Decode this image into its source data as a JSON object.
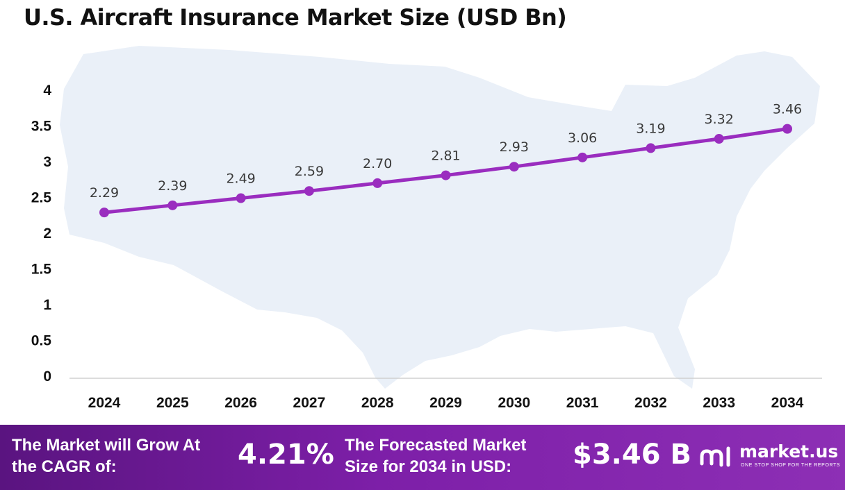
{
  "colors": {
    "line": "#9a2dbf",
    "map": "#eaf0f8",
    "footer_start": "#5a1480",
    "footer_end": "#8d2fb5"
  },
  "chart_data": {
    "type": "line",
    "title": "U.S. Aircraft Insurance Market Size (USD Bn)",
    "categories": [
      "2024",
      "2025",
      "2026",
      "2027",
      "2028",
      "2029",
      "2030",
      "2031",
      "2032",
      "2033",
      "2034"
    ],
    "series": [
      {
        "values": [
          2.29,
          2.39,
          2.49,
          2.59,
          2.7,
          2.81,
          2.93,
          3.06,
          3.19,
          3.32,
          3.46
        ],
        "labels": [
          "2.29",
          "2.39",
          "2.49",
          "2.59",
          "2.70",
          "2.81",
          "2.93",
          "3.06",
          "3.19",
          "3.32",
          "3.46"
        ]
      }
    ],
    "yticks": [
      "0",
      "0.5",
      "1",
      "1.5",
      "2",
      "2.5",
      "3",
      "3.5",
      "4"
    ],
    "ylim": [
      0,
      4
    ],
    "grid": false,
    "background": "map of the United States"
  },
  "footer": {
    "cagr_label": "The Market will Grow At the CAGR of:",
    "cagr_value": "4.21%",
    "forecast_label": "The Forecasted Market Size for 2034 in USD:",
    "forecast_value": "$3.46 B"
  },
  "brand": {
    "name": "market.us",
    "tagline": "ONE STOP SHOP FOR THE REPORTS",
    "icon": "market-us-logo-icon"
  }
}
